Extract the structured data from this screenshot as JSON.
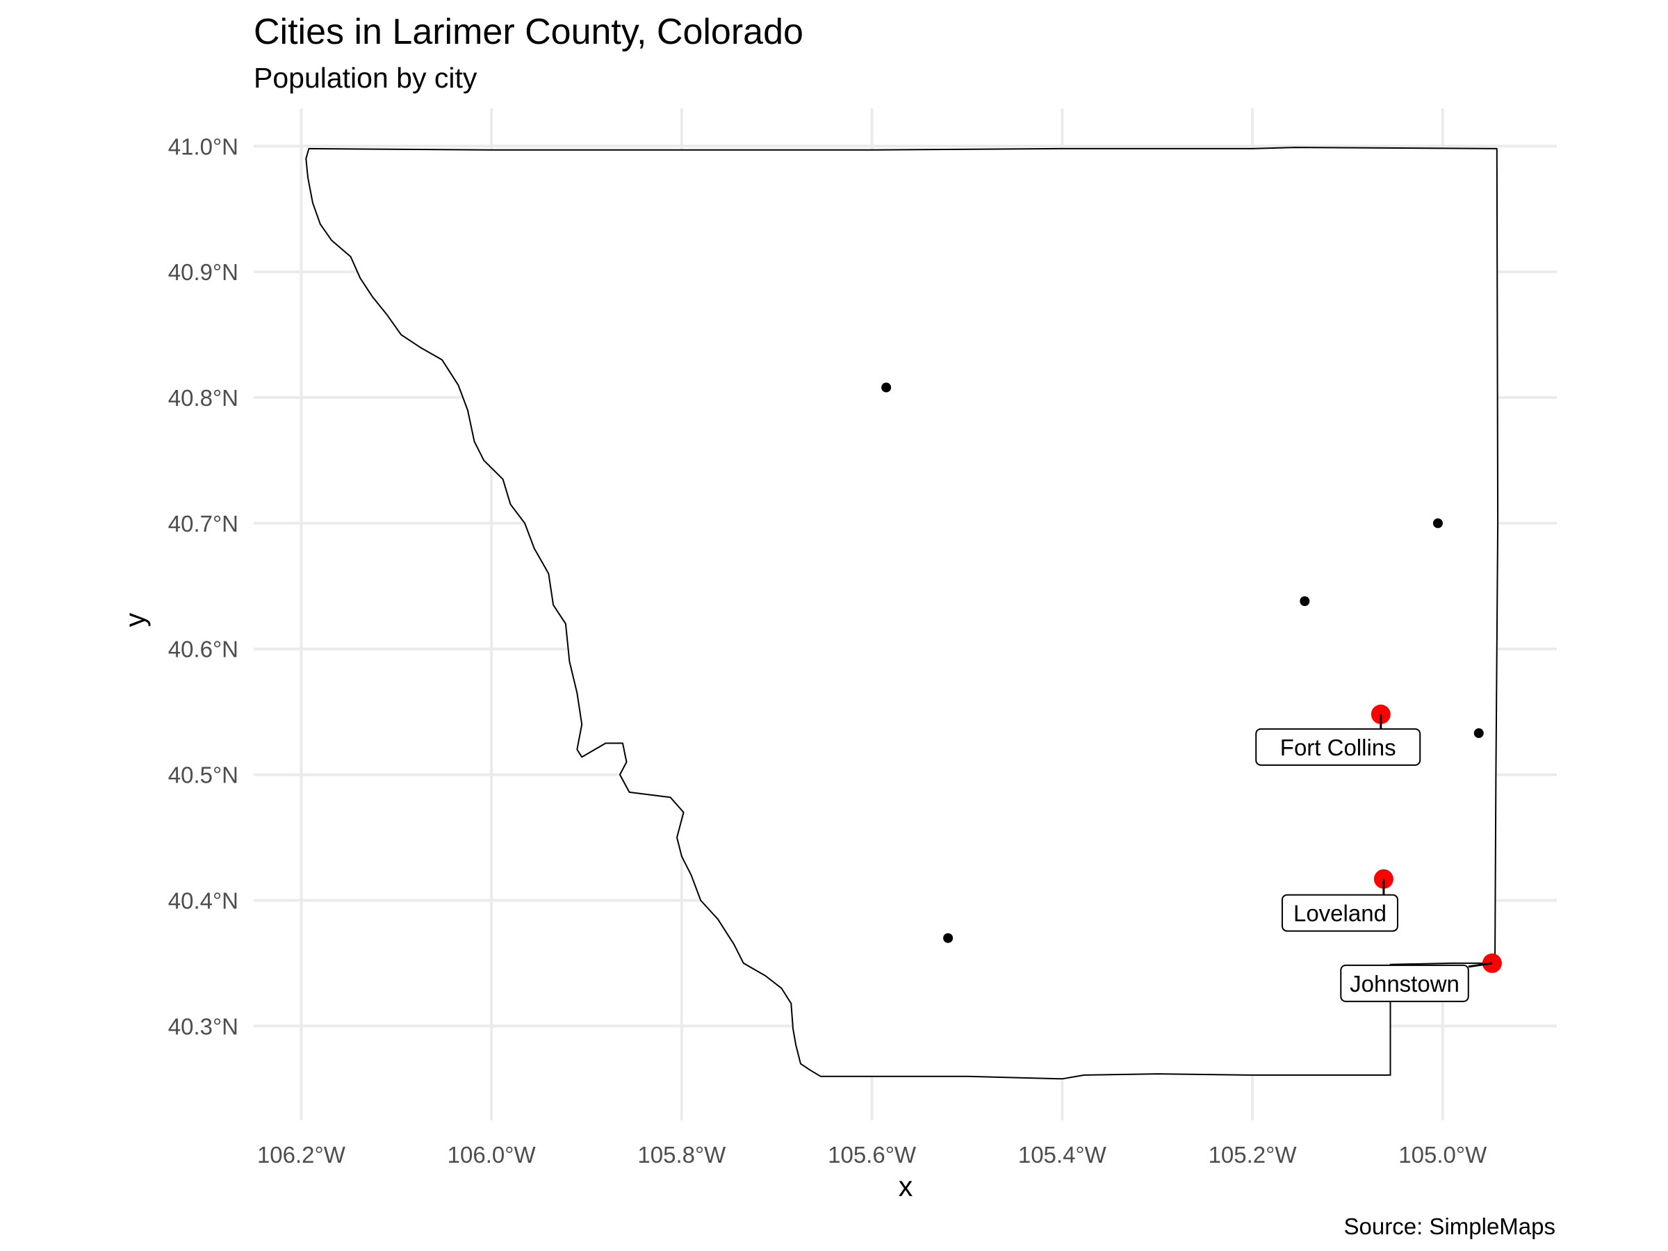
{
  "title": "Cities in Larimer County, Colorado",
  "subtitle": "Population by city",
  "caption": "Source: SimpleMaps",
  "chart_data": {
    "type": "scatter",
    "xlabel": "x",
    "ylabel": "y",
    "xlim": [
      -106.25,
      -104.88
    ],
    "ylim": [
      40.225,
      41.03
    ],
    "x_ticks": [
      -106.2,
      -106.0,
      -105.8,
      -105.6,
      -105.4,
      -105.2,
      -105.0
    ],
    "x_tick_labels": [
      "106.2°W",
      "106.0°W",
      "105.8°W",
      "105.6°W",
      "105.4°W",
      "105.2°W",
      "105.0°W"
    ],
    "y_ticks": [
      40.3,
      40.4,
      40.5,
      40.6,
      40.7,
      40.8,
      40.9,
      41.0
    ],
    "y_tick_labels": [
      "40.3°N",
      "40.4°N",
      "40.5°N",
      "40.6°N",
      "40.7°N",
      "40.8°N",
      "40.9°N",
      "41.0°N"
    ],
    "grid": true,
    "highlight_color": "#ff0000",
    "point_color": "#000000",
    "county_outline": [
      [
        -106.192,
        40.998
      ],
      [
        -106.0,
        40.997
      ],
      [
        -105.8,
        40.997
      ],
      [
        -105.6,
        40.997
      ],
      [
        -105.4,
        40.998
      ],
      [
        -105.2,
        40.998
      ],
      [
        -105.155,
        40.999
      ],
      [
        -104.943,
        40.998
      ],
      [
        -104.942,
        40.7
      ],
      [
        -104.944,
        40.5
      ],
      [
        -104.945,
        40.35
      ],
      [
        -104.99,
        40.35
      ],
      [
        -105.055,
        40.349
      ],
      [
        -105.055,
        40.3
      ],
      [
        -105.055,
        40.261
      ],
      [
        -105.2,
        40.261
      ],
      [
        -105.3,
        40.262
      ],
      [
        -105.377,
        40.261
      ],
      [
        -105.4,
        40.258
      ],
      [
        -105.5,
        40.26
      ],
      [
        -105.654,
        40.26
      ],
      [
        -105.665,
        40.265
      ],
      [
        -105.675,
        40.27
      ],
      [
        -105.68,
        40.285
      ],
      [
        -105.683,
        40.298
      ],
      [
        -105.685,
        40.318
      ],
      [
        -105.695,
        40.33
      ],
      [
        -105.712,
        40.34
      ],
      [
        -105.735,
        40.35
      ],
      [
        -105.745,
        40.365
      ],
      [
        -105.762,
        40.385
      ],
      [
        -105.78,
        40.4
      ],
      [
        -105.79,
        40.42
      ],
      [
        -105.8,
        40.435
      ],
      [
        -105.805,
        40.45
      ],
      [
        -105.798,
        40.47
      ],
      [
        -105.812,
        40.482
      ],
      [
        -105.855,
        40.486
      ],
      [
        -105.865,
        40.5
      ],
      [
        -105.858,
        40.51
      ],
      [
        -105.862,
        40.525
      ],
      [
        -105.88,
        40.525
      ],
      [
        -105.905,
        40.514
      ],
      [
        -105.91,
        40.52
      ],
      [
        -105.905,
        40.54
      ],
      [
        -105.91,
        40.565
      ],
      [
        -105.918,
        40.59
      ],
      [
        -105.922,
        40.62
      ],
      [
        -105.935,
        40.635
      ],
      [
        -105.94,
        40.66
      ],
      [
        -105.955,
        40.68
      ],
      [
        -105.965,
        40.7
      ],
      [
        -105.98,
        40.715
      ],
      [
        -105.988,
        40.735
      ],
      [
        -106.008,
        40.75
      ],
      [
        -106.018,
        40.765
      ],
      [
        -106.025,
        40.79
      ],
      [
        -106.035,
        40.81
      ],
      [
        -106.052,
        40.83
      ],
      [
        -106.075,
        40.84
      ],
      [
        -106.095,
        40.85
      ],
      [
        -106.11,
        40.866
      ],
      [
        -106.125,
        40.88
      ],
      [
        -106.138,
        40.895
      ],
      [
        -106.148,
        40.912
      ],
      [
        -106.168,
        40.925
      ],
      [
        -106.18,
        40.938
      ],
      [
        -106.188,
        40.955
      ],
      [
        -106.193,
        40.975
      ],
      [
        -106.195,
        40.99
      ],
      [
        -106.192,
        40.998
      ]
    ],
    "points": [
      {
        "x": -105.585,
        "y": 40.808,
        "highlight": false,
        "size": "small"
      },
      {
        "x": -105.005,
        "y": 40.7,
        "highlight": false,
        "size": "small"
      },
      {
        "x": -105.145,
        "y": 40.638,
        "highlight": false,
        "size": "small"
      },
      {
        "x": -104.962,
        "y": 40.533,
        "highlight": false,
        "size": "small"
      },
      {
        "x": -105.52,
        "y": 40.37,
        "highlight": false,
        "size": "small"
      },
      {
        "x": -105.065,
        "y": 40.548,
        "highlight": true,
        "size": "large",
        "label": "Fort Collins",
        "label_x": -105.11,
        "label_y": 40.522
      },
      {
        "x": -105.062,
        "y": 40.417,
        "highlight": true,
        "size": "large",
        "label": "Loveland",
        "label_x": -105.108,
        "label_y": 40.39
      },
      {
        "x": -104.948,
        "y": 40.35,
        "highlight": true,
        "size": "large",
        "label": "Johnstown",
        "label_x": -105.04,
        "label_y": 40.334
      }
    ]
  }
}
